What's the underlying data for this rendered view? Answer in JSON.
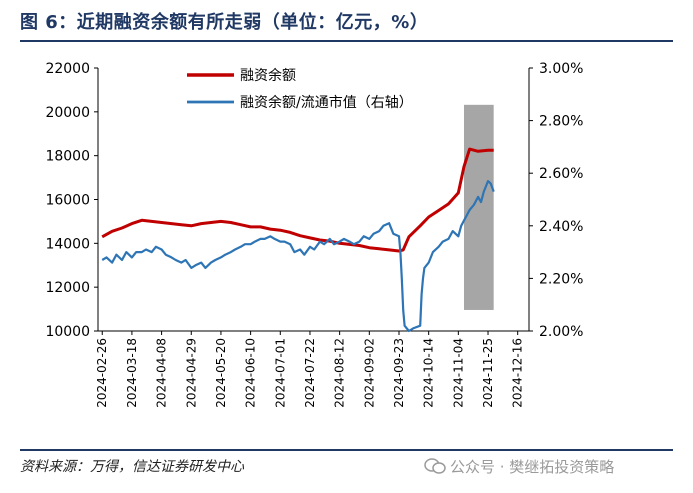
{
  "header": {
    "title": "图 6：近期融资余额有所走弱（单位：亿元，%）"
  },
  "footer": {
    "source": "资料来源：万得，信达证券研发中心",
    "watermark": "公众号 · 樊继拓投资策略"
  },
  "colors": {
    "title": "#1f3864",
    "series_margin_balance": "#c00000",
    "series_ratio": "#2e75b6",
    "highlight_box": "#a6a6a6"
  },
  "chart_data": {
    "type": "line",
    "title": "",
    "x_ticks": [
      "2024-02-26",
      "2024-03-18",
      "2024-04-08",
      "2024-04-29",
      "2024-05-20",
      "2024-06-10",
      "2024-07-01",
      "2024-07-22",
      "2024-08-12",
      "2024-09-02",
      "2024-09-23",
      "2024-10-14",
      "2024-11-04",
      "2024-11-25",
      "2024-12-16"
    ],
    "y_left": {
      "min": 10000,
      "max": 22000,
      "ticks": [
        10000,
        12000,
        14000,
        16000,
        18000,
        20000,
        22000
      ]
    },
    "y_right": {
      "min": 2.0,
      "max": 3.0,
      "ticks": [
        "2.00%",
        "2.20%",
        "2.40%",
        "2.60%",
        "2.80%",
        "3.00%"
      ]
    },
    "legend": {
      "position": "top-left"
    },
    "grid": false,
    "highlight": {
      "x_start": "2024-11-08",
      "x_end": "2024-11-29",
      "y_min": 2.08,
      "y_max": 2.86
    },
    "series": [
      {
        "name": "融资余额",
        "axis": "left",
        "points": [
          [
            "2024-02-26",
            14300
          ],
          [
            "2024-03-04",
            14550
          ],
          [
            "2024-03-11",
            14700
          ],
          [
            "2024-03-18",
            14900
          ],
          [
            "2024-03-25",
            15050
          ],
          [
            "2024-04-01",
            15000
          ],
          [
            "2024-04-08",
            14950
          ],
          [
            "2024-04-15",
            14900
          ],
          [
            "2024-04-22",
            14850
          ],
          [
            "2024-04-29",
            14800
          ],
          [
            "2024-05-06",
            14900
          ],
          [
            "2024-05-13",
            14950
          ],
          [
            "2024-05-20",
            15000
          ],
          [
            "2024-05-27",
            14950
          ],
          [
            "2024-06-03",
            14850
          ],
          [
            "2024-06-10",
            14750
          ],
          [
            "2024-06-17",
            14750
          ],
          [
            "2024-06-24",
            14650
          ],
          [
            "2024-07-01",
            14600
          ],
          [
            "2024-07-08",
            14500
          ],
          [
            "2024-07-15",
            14350
          ],
          [
            "2024-07-22",
            14250
          ],
          [
            "2024-07-29",
            14150
          ],
          [
            "2024-08-05",
            14100
          ],
          [
            "2024-08-12",
            14000
          ],
          [
            "2024-08-19",
            13950
          ],
          [
            "2024-08-26",
            13900
          ],
          [
            "2024-09-02",
            13800
          ],
          [
            "2024-09-09",
            13750
          ],
          [
            "2024-09-16",
            13700
          ],
          [
            "2024-09-23",
            13650
          ],
          [
            "2024-09-26",
            13700
          ],
          [
            "2024-09-30",
            14300
          ],
          [
            "2024-10-08",
            14800
          ],
          [
            "2024-10-14",
            15200
          ],
          [
            "2024-10-21",
            15500
          ],
          [
            "2024-10-28",
            15800
          ],
          [
            "2024-11-04",
            16300
          ],
          [
            "2024-11-08",
            17500
          ],
          [
            "2024-11-12",
            18300
          ],
          [
            "2024-11-18",
            18200
          ],
          [
            "2024-11-25",
            18250
          ],
          [
            "2024-11-29",
            18250
          ]
        ]
      },
      {
        "name": "融资余额/流通市值（右轴）",
        "axis": "right",
        "points": [
          [
            "2024-02-26",
            2.27
          ],
          [
            "2024-02-29",
            2.28
          ],
          [
            "2024-03-04",
            2.26
          ],
          [
            "2024-03-07",
            2.29
          ],
          [
            "2024-03-11",
            2.27
          ],
          [
            "2024-03-14",
            2.3
          ],
          [
            "2024-03-18",
            2.28
          ],
          [
            "2024-03-21",
            2.3
          ],
          [
            "2024-03-25",
            2.3
          ],
          [
            "2024-03-28",
            2.31
          ],
          [
            "2024-04-01",
            2.3
          ],
          [
            "2024-04-04",
            2.32
          ],
          [
            "2024-04-08",
            2.31
          ],
          [
            "2024-04-11",
            2.29
          ],
          [
            "2024-04-15",
            2.28
          ],
          [
            "2024-04-18",
            2.27
          ],
          [
            "2024-04-22",
            2.26
          ],
          [
            "2024-04-25",
            2.27
          ],
          [
            "2024-04-29",
            2.24
          ],
          [
            "2024-05-02",
            2.25
          ],
          [
            "2024-05-06",
            2.26
          ],
          [
            "2024-05-09",
            2.24
          ],
          [
            "2024-05-13",
            2.26
          ],
          [
            "2024-05-16",
            2.27
          ],
          [
            "2024-05-20",
            2.28
          ],
          [
            "2024-05-23",
            2.29
          ],
          [
            "2024-05-27",
            2.3
          ],
          [
            "2024-05-30",
            2.31
          ],
          [
            "2024-06-03",
            2.32
          ],
          [
            "2024-06-06",
            2.33
          ],
          [
            "2024-06-10",
            2.33
          ],
          [
            "2024-06-13",
            2.34
          ],
          [
            "2024-06-17",
            2.35
          ],
          [
            "2024-06-20",
            2.35
          ],
          [
            "2024-06-24",
            2.36
          ],
          [
            "2024-06-27",
            2.35
          ],
          [
            "2024-07-01",
            2.34
          ],
          [
            "2024-07-04",
            2.34
          ],
          [
            "2024-07-08",
            2.33
          ],
          [
            "2024-07-11",
            2.3
          ],
          [
            "2024-07-15",
            2.31
          ],
          [
            "2024-07-18",
            2.29
          ],
          [
            "2024-07-22",
            2.32
          ],
          [
            "2024-07-25",
            2.31
          ],
          [
            "2024-07-29",
            2.34
          ],
          [
            "2024-08-01",
            2.33
          ],
          [
            "2024-08-05",
            2.35
          ],
          [
            "2024-08-08",
            2.33
          ],
          [
            "2024-08-12",
            2.34
          ],
          [
            "2024-08-15",
            2.35
          ],
          [
            "2024-08-19",
            2.34
          ],
          [
            "2024-08-22",
            2.33
          ],
          [
            "2024-08-26",
            2.34
          ],
          [
            "2024-08-29",
            2.36
          ],
          [
            "2024-09-02",
            2.35
          ],
          [
            "2024-09-05",
            2.37
          ],
          [
            "2024-09-09",
            2.38
          ],
          [
            "2024-09-12",
            2.4
          ],
          [
            "2024-09-16",
            2.41
          ],
          [
            "2024-09-19",
            2.37
          ],
          [
            "2024-09-23",
            2.36
          ],
          [
            "2024-09-24",
            2.3
          ],
          [
            "2024-09-25",
            2.2
          ],
          [
            "2024-09-26",
            2.08
          ],
          [
            "2024-09-27",
            2.02
          ],
          [
            "2024-09-30",
            2.0
          ],
          [
            "2024-10-03",
            2.01
          ],
          [
            "2024-10-08",
            2.02
          ],
          [
            "2024-10-09",
            2.14
          ],
          [
            "2024-10-10",
            2.2
          ],
          [
            "2024-10-11",
            2.24
          ],
          [
            "2024-10-14",
            2.26
          ],
          [
            "2024-10-17",
            2.3
          ],
          [
            "2024-10-21",
            2.32
          ],
          [
            "2024-10-24",
            2.34
          ],
          [
            "2024-10-28",
            2.35
          ],
          [
            "2024-10-31",
            2.38
          ],
          [
            "2024-11-04",
            2.36
          ],
          [
            "2024-11-06",
            2.4
          ],
          [
            "2024-11-08",
            2.42
          ],
          [
            "2024-11-12",
            2.46
          ],
          [
            "2024-11-15",
            2.48
          ],
          [
            "2024-11-18",
            2.51
          ],
          [
            "2024-11-20",
            2.49
          ],
          [
            "2024-11-22",
            2.53
          ],
          [
            "2024-11-25",
            2.57
          ],
          [
            "2024-11-27",
            2.56
          ],
          [
            "2024-11-29",
            2.53
          ]
        ]
      }
    ]
  }
}
